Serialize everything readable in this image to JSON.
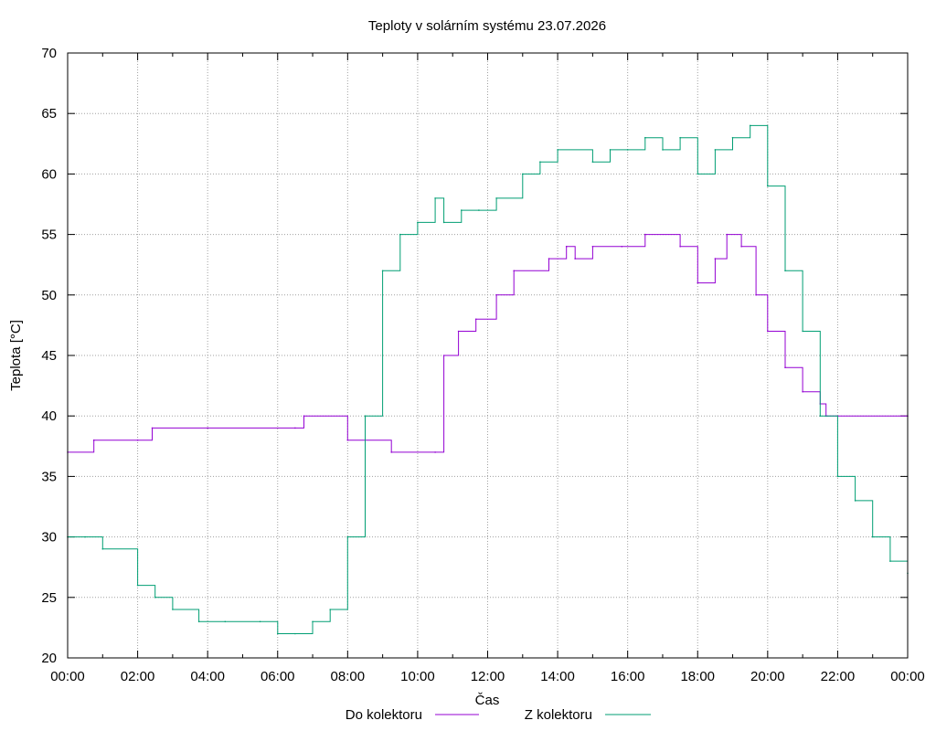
{
  "chart_data": {
    "type": "line",
    "title": "Teploty v solárním systému 23.07.2026",
    "xlabel": "Čas",
    "ylabel": "Teplota [°C]",
    "xlim": [
      "00:00",
      "24:00"
    ],
    "ylim": [
      20,
      70
    ],
    "x_ticks": [
      "00:00",
      "02:00",
      "04:00",
      "06:00",
      "08:00",
      "10:00",
      "12:00",
      "14:00",
      "16:00",
      "18:00",
      "20:00",
      "22:00",
      "00:00"
    ],
    "y_ticks": [
      "20",
      "25",
      "30",
      "35",
      "40",
      "45",
      "50",
      "55",
      "60",
      "65",
      "70"
    ],
    "grid": true,
    "legend_position": "bottom",
    "series": [
      {
        "name": "Do kolektoru",
        "color": "#9400d3",
        "x": [
          "00:00",
          "00:45",
          "02:00",
          "02:25",
          "04:00",
          "06:30",
          "06:45",
          "08:00",
          "09:15",
          "10:30",
          "10:45",
          "11:10",
          "11:40",
          "12:15",
          "12:45",
          "13:45",
          "14:15",
          "14:30",
          "15:00",
          "15:50",
          "16:30",
          "17:30",
          "18:00",
          "18:30",
          "18:50",
          "19:15",
          "19:40",
          "20:00",
          "20:30",
          "21:00",
          "21:30",
          "21:40",
          "24:00"
        ],
        "values": [
          37,
          38,
          38,
          39,
          39,
          39,
          40,
          38,
          37,
          37,
          45,
          47,
          48,
          50,
          52,
          53,
          54,
          53,
          54,
          54,
          55,
          54,
          51,
          53,
          55,
          54,
          50,
          47,
          44,
          42,
          41,
          40,
          40
        ]
      },
      {
        "name": "Z kolektoru",
        "color": "#009e73",
        "x": [
          "00:00",
          "00:30",
          "01:00",
          "02:00",
          "02:30",
          "03:00",
          "03:45",
          "04:30",
          "05:30",
          "06:00",
          "06:30",
          "07:00",
          "07:30",
          "08:00",
          "08:30",
          "09:00",
          "09:30",
          "10:00",
          "10:30",
          "10:45",
          "11:15",
          "11:45",
          "12:15",
          "13:00",
          "13:30",
          "14:00",
          "15:00",
          "15:30",
          "16:00",
          "16:30",
          "17:00",
          "17:30",
          "18:00",
          "18:30",
          "19:00",
          "19:30",
          "20:00",
          "20:30",
          "21:00",
          "21:30",
          "22:00",
          "22:30",
          "23:00",
          "23:30",
          "24:00"
        ],
        "values": [
          30,
          30,
          29,
          26,
          25,
          24,
          23,
          23,
          23,
          22,
          22,
          23,
          24,
          30,
          40,
          52,
          55,
          56,
          58,
          56,
          57,
          57,
          58,
          60,
          61,
          62,
          61,
          62,
          62,
          63,
          62,
          63,
          60,
          62,
          63,
          64,
          59,
          52,
          47,
          40,
          35,
          33,
          30,
          28,
          27
        ]
      }
    ]
  }
}
